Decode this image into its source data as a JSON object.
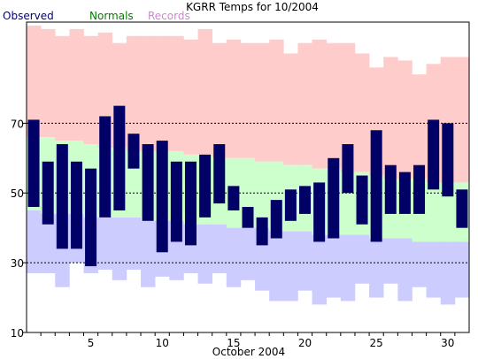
{
  "chart_data": {
    "type": "bar",
    "title": "KGRR Temps for 10/2004",
    "xlabel": "October 2004",
    "ylabel": "",
    "ylim": [
      10,
      99
    ],
    "y_ticks": [
      10,
      30,
      50,
      70
    ],
    "x_ticks": [
      5,
      10,
      15,
      20,
      25,
      30
    ],
    "grid": "dashed horizontal at 30, 50, 70",
    "legend": [
      "Observed",
      "Normals",
      "Records"
    ],
    "legend_placement": "top-left",
    "colors": {
      "observed": "#000066",
      "normals": "#ccffcc",
      "records": "#ffcccc",
      "low_band": "#ccccff",
      "observed_legend": "#000080",
      "normals_legend": "#008000",
      "records_legend": "#cc88cc"
    },
    "days": [
      1,
      2,
      3,
      4,
      5,
      6,
      7,
      8,
      9,
      10,
      11,
      12,
      13,
      14,
      15,
      16,
      17,
      18,
      19,
      20,
      21,
      22,
      23,
      24,
      25,
      26,
      27,
      28,
      29,
      30,
      31
    ],
    "record_high": [
      98,
      97,
      95,
      97,
      95,
      96,
      93,
      95,
      95,
      95,
      95,
      94,
      97,
      93,
      94,
      93,
      93,
      94,
      90,
      93,
      94,
      93,
      93,
      90,
      86,
      89,
      88,
      84,
      87,
      89,
      89
    ],
    "normal_high": [
      66,
      66,
      65,
      65,
      64,
      63,
      63,
      62,
      62,
      62,
      62,
      61,
      61,
      60,
      60,
      60,
      59,
      59,
      58,
      58,
      57,
      57,
      56,
      56,
      55,
      54,
      54,
      54,
      53,
      53,
      53
    ],
    "normal_low": [
      45,
      44,
      44,
      44,
      43,
      43,
      43,
      43,
      42,
      42,
      42,
      41,
      41,
      41,
      40,
      40,
      40,
      39,
      39,
      39,
      38,
      38,
      38,
      38,
      37,
      37,
      37,
      36,
      36,
      36,
      36
    ],
    "record_low": [
      27,
      27,
      23,
      30,
      27,
      28,
      25,
      28,
      23,
      26,
      25,
      27,
      24,
      27,
      23,
      25,
      22,
      19,
      19,
      22,
      18,
      20,
      19,
      24,
      20,
      24,
      19,
      23,
      20,
      18,
      20
    ],
    "observed_high": [
      71,
      59,
      64,
      59,
      57,
      72,
      75,
      67,
      64,
      65,
      59,
      59,
      61,
      64,
      52,
      46,
      43,
      48,
      51,
      52,
      53,
      60,
      64,
      55,
      68,
      58,
      56,
      58,
      71,
      70,
      51
    ],
    "observed_low": [
      46,
      41,
      34,
      34,
      29,
      43,
      45,
      57,
      42,
      33,
      36,
      35,
      43,
      47,
      45,
      40,
      35,
      37,
      42,
      44,
      36,
      37,
      50,
      41,
      36,
      44,
      44,
      44,
      51,
      49,
      40
    ]
  }
}
